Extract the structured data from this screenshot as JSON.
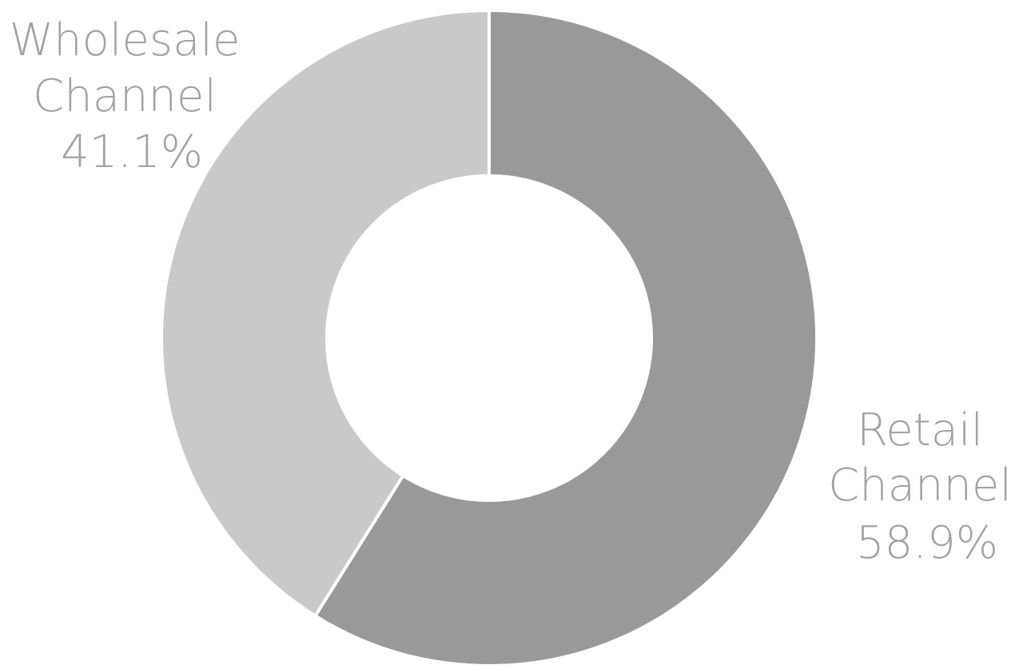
{
  "chart_data": {
    "type": "pie",
    "variant": "donut",
    "legend": "none",
    "slices": [
      {
        "label_line1": "Retail",
        "label_line2": "Channel",
        "percent_label": "58.9%",
        "value": 58.9,
        "color": "#999999"
      },
      {
        "label_line1": "Wholesale",
        "label_line2": "Channel",
        "percent_label": "41.1%",
        "value": 41.1,
        "color": "#c9c9c9"
      }
    ],
    "label_color": "#a3a3a3",
    "separator_color": "#ffffff",
    "start": "top",
    "direction": "clockwise"
  }
}
